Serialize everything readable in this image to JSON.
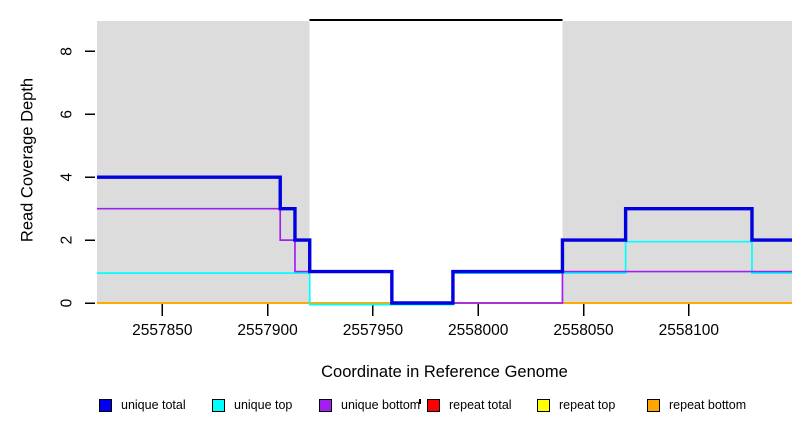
{
  "chart_data": {
    "type": "line",
    "step": "after",
    "title": "",
    "xlabel": "Coordinate in Reference Genome",
    "ylabel": "Read Coverage Depth",
    "xlim": [
      2557819,
      2558149
    ],
    "ylim": [
      0,
      9
    ],
    "x_ticks": [
      2557850,
      2557900,
      2557950,
      2558000,
      2558050,
      2558100
    ],
    "y_ticks": [
      0,
      2,
      4,
      6,
      8
    ],
    "grid": false,
    "background_regions": [
      {
        "name": "shaded-left",
        "x": [
          2557819,
          2557920
        ],
        "color": "#dcdcdc"
      },
      {
        "name": "gap-white",
        "x": [
          2557920,
          2558040
        ],
        "color": "#ffffff"
      },
      {
        "name": "shaded-right",
        "x": [
          2558040,
          2558149
        ],
        "color": "#dcdcdc"
      }
    ],
    "gap_marker": {
      "x": [
        2557920,
        2558040
      ],
      "y": 9,
      "color": "#000000"
    },
    "series": [
      {
        "name": "repeat total",
        "color": "#ff0000",
        "steps": [
          [
            2557819,
            0
          ]
        ]
      },
      {
        "name": "repeat top",
        "color": "#ffff00",
        "steps": [
          [
            2557819,
            0
          ]
        ]
      },
      {
        "name": "repeat bottom",
        "color": "#ffa500",
        "steps": [
          [
            2557819,
            0
          ]
        ]
      },
      {
        "name": "unique top",
        "color": "#00ffff",
        "steps": [
          [
            2557819,
            1
          ],
          [
            2557920,
            0
          ],
          [
            2557988,
            1
          ],
          [
            2558070,
            2
          ],
          [
            2558130,
            1
          ]
        ]
      },
      {
        "name": "unique bottom",
        "color": "#a020f0",
        "steps": [
          [
            2557819,
            3
          ],
          [
            2557906,
            2
          ],
          [
            2557913,
            1
          ],
          [
            2557959,
            0
          ],
          [
            2558040,
            1
          ]
        ]
      },
      {
        "name": "unique total",
        "color": "#0000e0",
        "steps": [
          [
            2557819,
            4
          ],
          [
            2557906,
            3
          ],
          [
            2557913,
            2
          ],
          [
            2557920,
            1
          ],
          [
            2557959,
            0
          ],
          [
            2557988,
            1
          ],
          [
            2558040,
            2
          ],
          [
            2558070,
            3
          ],
          [
            2558130,
            2
          ]
        ]
      }
    ]
  },
  "legend": {
    "items": [
      {
        "label": "unique total",
        "color": "#0000ee"
      },
      {
        "label": "unique top",
        "color": "#00ffff"
      },
      {
        "label": "unique bottom",
        "color": "#a020f0"
      },
      {
        "label": "repeat total",
        "color": "#ff0000"
      },
      {
        "label": "repeat top",
        "color": "#ffff00"
      },
      {
        "label": "repeat bottom",
        "color": "#ffa500"
      }
    ]
  }
}
